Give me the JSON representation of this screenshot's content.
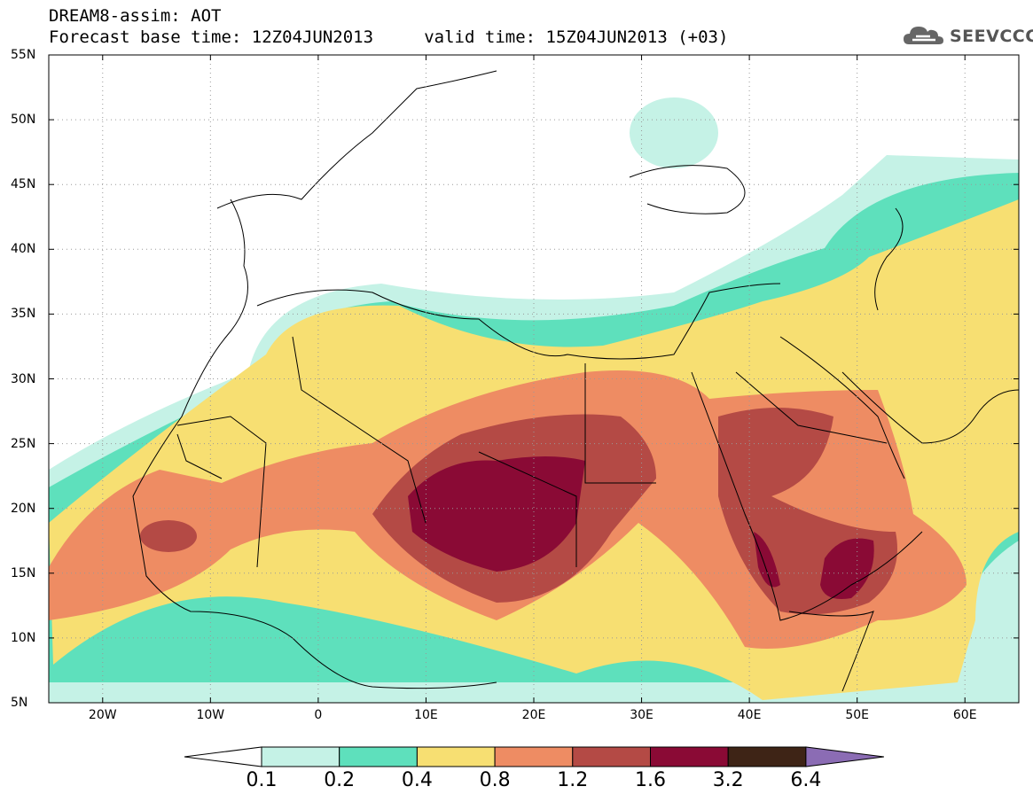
{
  "title": {
    "line1": "DREAM8-assim: AOT",
    "line2": "Forecast base time: 12Z04JUN2013     valid time: 15Z04JUN2013 (+03)"
  },
  "logo": {
    "text": "SEEVCCC",
    "icon": "cloud-icon"
  },
  "map": {
    "lon_range": [
      -25,
      65
    ],
    "lat_range": [
      5,
      55
    ],
    "lat_ticks": [
      {
        "value": 55,
        "label": "55N"
      },
      {
        "value": 50,
        "label": "50N"
      },
      {
        "value": 45,
        "label": "45N"
      },
      {
        "value": 40,
        "label": "40N"
      },
      {
        "value": 35,
        "label": "35N"
      },
      {
        "value": 30,
        "label": "30N"
      },
      {
        "value": 25,
        "label": "25N"
      },
      {
        "value": 20,
        "label": "20N"
      },
      {
        "value": 15,
        "label": "15N"
      },
      {
        "value": 10,
        "label": "10N"
      },
      {
        "value": 5,
        "label": "5N"
      }
    ],
    "lon_ticks": [
      {
        "value": -20,
        "label": "20W"
      },
      {
        "value": -10,
        "label": "10W"
      },
      {
        "value": 0,
        "label": "0"
      },
      {
        "value": 10,
        "label": "10E"
      },
      {
        "value": 20,
        "label": "20E"
      },
      {
        "value": 30,
        "label": "30E"
      },
      {
        "value": 40,
        "label": "40E"
      },
      {
        "value": 50,
        "label": "50E"
      },
      {
        "value": 60,
        "label": "60E"
      }
    ],
    "grid": "dotted"
  },
  "colorbar": {
    "levels": [
      "0.1",
      "0.2",
      "0.4",
      "0.8",
      "1.2",
      "1.6",
      "3.2",
      "6.4"
    ],
    "colors": [
      "#ffffff",
      "#c5f2e6",
      "#5ee0bc",
      "#f7df72",
      "#ee8c63",
      "#b44a45",
      "#8a0a35",
      "#3e2416",
      "#8b6cb4"
    ]
  }
}
